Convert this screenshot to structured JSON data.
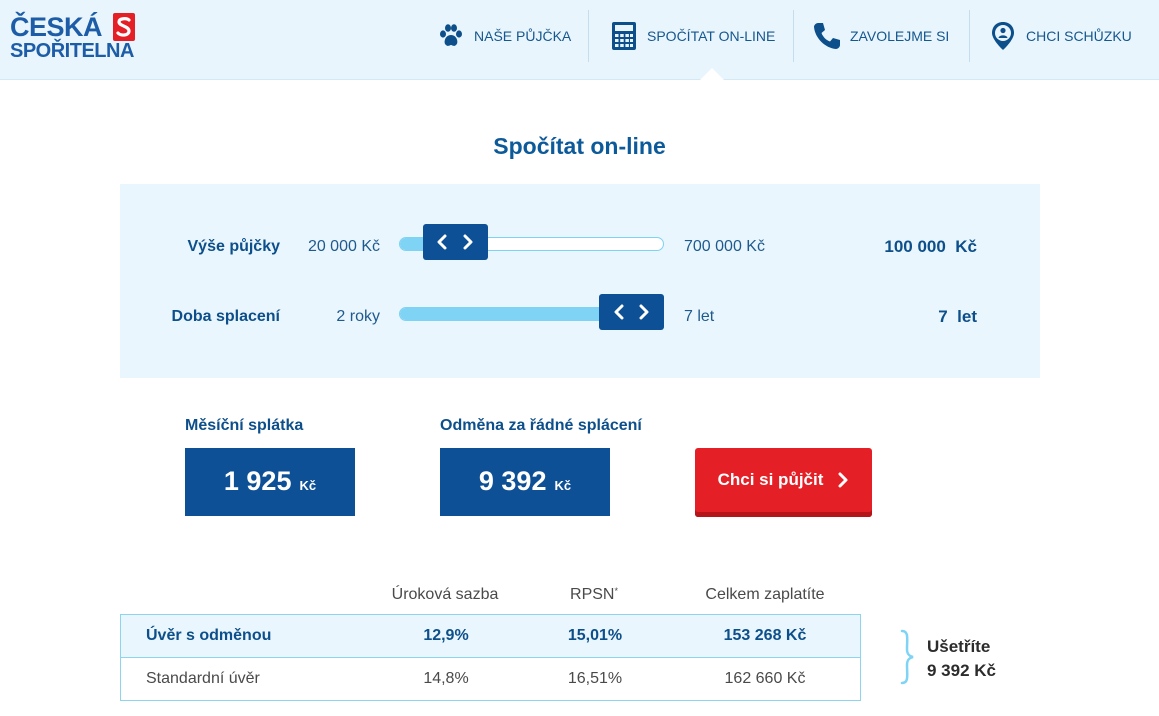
{
  "brand": {
    "line1": "ČESKÁ",
    "line2": "SPOŘITELNA",
    "color": "#1d5da8",
    "mark_color": "#e51f26"
  },
  "nav": {
    "items": [
      {
        "label": "NAŠE PŮJČKA",
        "icon": "paw-icon"
      },
      {
        "label": "SPOČÍTAT ON-LINE",
        "icon": "calculator-icon",
        "active": true
      },
      {
        "label": "ZAVOLEJME SI",
        "icon": "phone-icon"
      },
      {
        "label": "CHCI SCHŮZKU",
        "icon": "location-person-icon"
      }
    ]
  },
  "title": "Spočítat on-line",
  "sliders": {
    "amount": {
      "label": "Výše půjčky",
      "min_label": "20 000 Kč",
      "max_label": "700 000 Kč",
      "value": "100 000",
      "unit": "Kč",
      "min": 20000,
      "max": 700000,
      "current": 100000
    },
    "term": {
      "label": "Doba splacení",
      "min_label": "2 roky",
      "max_label": "7 let",
      "value": "7",
      "unit": "let",
      "min": 2,
      "max": 7,
      "current": 7
    }
  },
  "results": {
    "monthly": {
      "label": "Měsíční splátka",
      "value": "1 925",
      "unit": "Kč"
    },
    "reward": {
      "label": "Odměna za řádné splácení",
      "value": "9 392",
      "unit": "Kč"
    },
    "cta_label": "Chci si půjčit"
  },
  "table": {
    "headers": [
      "",
      "Úroková sazba",
      "RPSN",
      "Celkem zaplatíte"
    ],
    "rpsn_mark": "*",
    "rows": [
      [
        "Úvěr s odměnou",
        "12,9%",
        "15,01%",
        "153 268 Kč"
      ],
      [
        "Standardní úvěr",
        "14,8%",
        "16,51%",
        "162 660 Kč"
      ]
    ]
  },
  "savings": {
    "line1": "Ušetříte",
    "line2": "9 392 Kč"
  },
  "colors": {
    "primary": "#0d5095",
    "accent_red": "#e51f26",
    "light_blue": "#7fd3f5",
    "panel_bg": "#eaf6fd"
  }
}
